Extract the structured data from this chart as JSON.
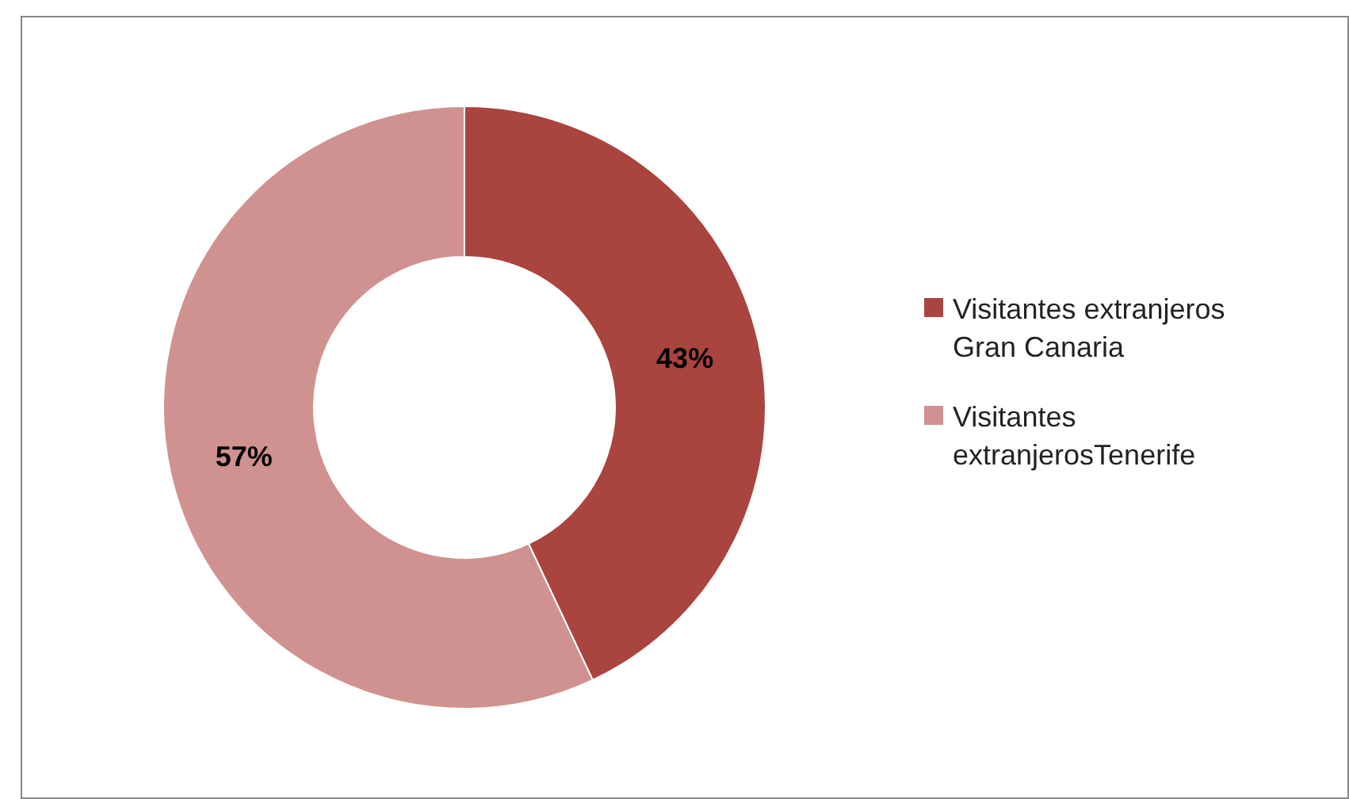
{
  "chart_data": {
    "type": "donut",
    "categories": [
      "Visitantes extranjeros Gran Canaria",
      "Visitantes extranjerosTenerife"
    ],
    "values": [
      43,
      57
    ],
    "colors": [
      "#a9443f",
      "#d09290"
    ],
    "value_labels": [
      "43%",
      "57%"
    ],
    "legend": "right"
  }
}
